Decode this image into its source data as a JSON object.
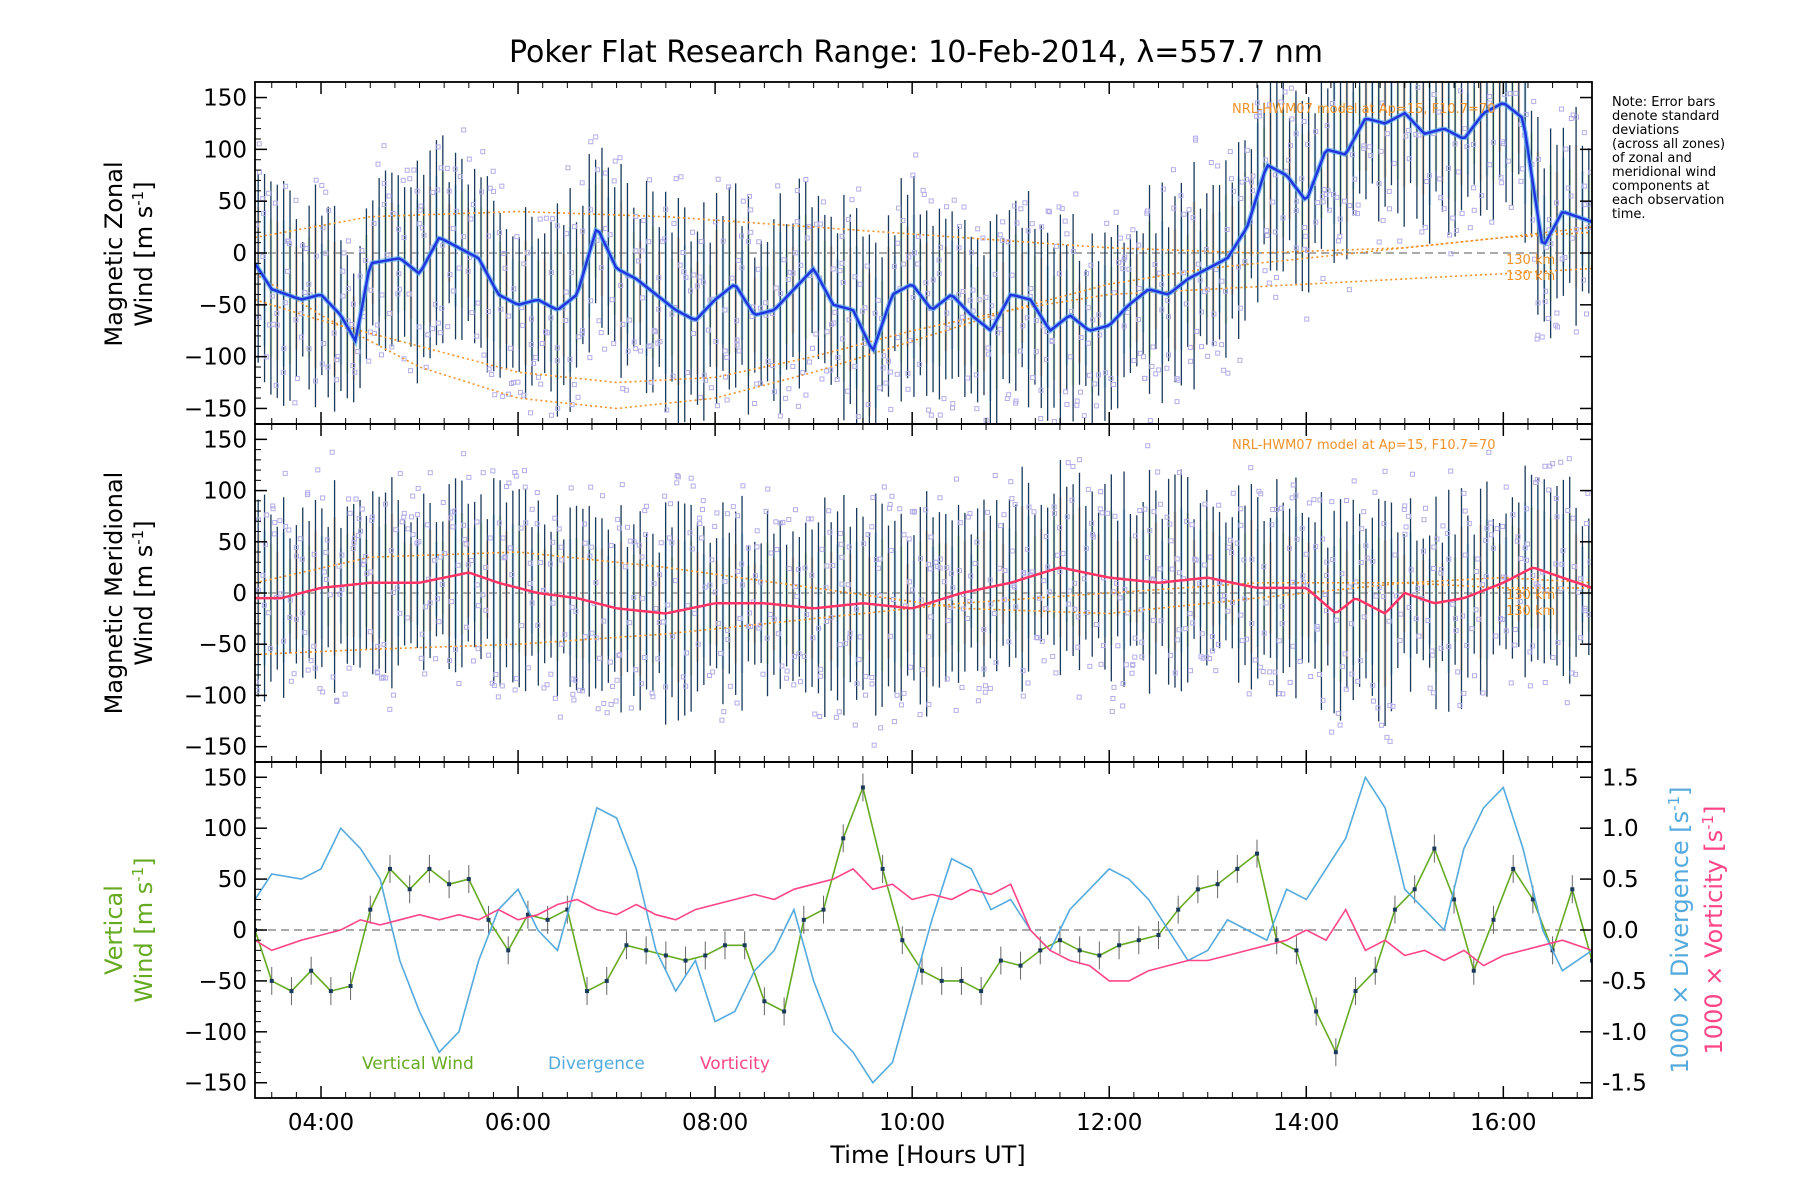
{
  "figure": {
    "title": "Poker Flat Research Range: 10-Feb-2014, λ=557.7 nm",
    "note": [
      "Note: Error bars",
      "denote standard",
      "deviations",
      "(across all zones)",
      "of zonal and",
      "meridional wind",
      "components at",
      "each observation",
      "time."
    ],
    "model_label_zonal": "NRL-HWM07 model at Ap=15, F10.7=70",
    "model_label_meridional": "NRL-HWM07 model at Ap=15, F10.7=70",
    "model_alt_zonal": [
      "130 km",
      "130 km"
    ],
    "model_alt_meridional": [
      "130 km",
      "130 km"
    ],
    "colors": {
      "zonal_mean": "#1f35e0",
      "zonal_light": "#5aa8e8",
      "meridional_mean": "#ff3366",
      "scatter": "#b3aee8",
      "error_bar": "#1a3a5c",
      "model": "#f0922a",
      "vertical": "#66aa22",
      "divergence": "#55aadd",
      "vorticity": "#ff4488"
    }
  },
  "chart_data": [
    {
      "type": "line",
      "id": "zonal",
      "ylabel_line1": "Magnetic Zonal",
      "ylabel_line2_prefix": "Wind [m s",
      "ylabel_sup": "-1",
      "ylabel_suffix": "]",
      "xlim": [
        3.33,
        16.9
      ],
      "ylim": [
        -165,
        165
      ],
      "yticks": [
        -150,
        -100,
        -50,
        0,
        50,
        100,
        150
      ],
      "series": [
        {
          "role": "mean",
          "x": [
            3.33,
            3.5,
            3.8,
            4.0,
            4.2,
            4.35,
            4.5,
            4.8,
            5.0,
            5.2,
            5.4,
            5.6,
            5.8,
            6.0,
            6.2,
            6.4,
            6.6,
            6.8,
            7.0,
            7.2,
            7.4,
            7.6,
            7.8,
            8.0,
            8.2,
            8.4,
            8.6,
            8.8,
            9.0,
            9.2,
            9.4,
            9.6,
            9.8,
            10.0,
            10.2,
            10.4,
            10.6,
            10.8,
            11.0,
            11.2,
            11.4,
            11.6,
            11.8,
            12.0,
            12.2,
            12.4,
            12.6,
            12.8,
            13.0,
            13.2,
            13.4,
            13.6,
            13.8,
            14.0,
            14.2,
            14.4,
            14.6,
            14.8,
            15.0,
            15.2,
            15.4,
            15.6,
            15.8,
            16.0,
            16.2,
            16.4,
            16.6,
            16.9
          ],
          "y": [
            -10,
            -35,
            -45,
            -40,
            -60,
            -85,
            -10,
            -5,
            -20,
            15,
            5,
            -5,
            -40,
            -50,
            -45,
            -55,
            -40,
            25,
            -15,
            -25,
            -40,
            -55,
            -65,
            -45,
            -30,
            -60,
            -55,
            -35,
            -15,
            -50,
            -55,
            -95,
            -40,
            -30,
            -55,
            -40,
            -60,
            -75,
            -40,
            -45,
            -75,
            -60,
            -75,
            -70,
            -50,
            -35,
            -40,
            -25,
            -15,
            -5,
            25,
            85,
            75,
            50,
            100,
            95,
            130,
            125,
            135,
            115,
            120,
            110,
            135,
            145,
            130,
            5,
            40,
            30
          ]
        },
        {
          "role": "model_a",
          "x": [
            3.33,
            4.0,
            5.0,
            6.0,
            7.0,
            8.0,
            9.0,
            10.0,
            11.0,
            12.0,
            13.0,
            14.0,
            15.0,
            16.0,
            16.9
          ],
          "y": [
            -45,
            -65,
            -90,
            -115,
            -125,
            -120,
            -100,
            -75,
            -55,
            -40,
            -35,
            -30,
            -25,
            -20,
            -15
          ]
        },
        {
          "role": "model_b",
          "x": [
            3.33,
            4.0,
            5.0,
            6.0,
            7.0,
            8.0,
            9.0,
            10.0,
            11.0,
            12.0,
            13.0,
            14.0,
            15.0,
            16.0,
            16.9
          ],
          "y": [
            -20,
            -60,
            -110,
            -140,
            -150,
            -140,
            -115,
            -85,
            -55,
            -30,
            -15,
            -5,
            5,
            15,
            25
          ]
        },
        {
          "role": "model_c",
          "x": [
            3.33,
            4.5,
            6.0,
            7.5,
            9.0,
            10.5,
            12.0,
            13.5,
            15.0,
            16.0,
            16.9
          ],
          "y": [
            15,
            35,
            40,
            35,
            25,
            15,
            5,
            0,
            5,
            15,
            20
          ]
        }
      ]
    },
    {
      "type": "line",
      "id": "meridional",
      "ylabel_line1": "Magnetic Meridional",
      "ylabel_line2_prefix": "Wind [m s",
      "ylabel_sup": "-1",
      "ylabel_suffix": "]",
      "xlim": [
        3.33,
        16.9
      ],
      "ylim": [
        -165,
        165
      ],
      "yticks": [
        -150,
        -100,
        -50,
        0,
        50,
        100,
        150
      ],
      "series": [
        {
          "role": "mean",
          "x": [
            3.33,
            3.6,
            4.0,
            4.5,
            5.0,
            5.5,
            5.8,
            6.2,
            6.6,
            7.0,
            7.5,
            8.0,
            8.5,
            9.0,
            9.5,
            10.0,
            10.5,
            11.0,
            11.5,
            12.0,
            12.5,
            13.0,
            13.5,
            14.0,
            14.3,
            14.5,
            14.8,
            15.0,
            15.3,
            15.6,
            16.0,
            16.3,
            16.6,
            16.9
          ],
          "y": [
            -5,
            -5,
            5,
            10,
            10,
            20,
            10,
            0,
            -5,
            -15,
            -20,
            -10,
            -10,
            -15,
            -10,
            -15,
            0,
            10,
            25,
            15,
            10,
            15,
            5,
            5,
            -20,
            -5,
            -20,
            0,
            -10,
            -5,
            10,
            25,
            15,
            5
          ]
        },
        {
          "role": "model_a",
          "x": [
            3.33,
            4.5,
            6.0,
            7.5,
            9.0,
            10.5,
            12.0,
            13.5,
            15.0,
            16.0,
            16.9
          ],
          "y": [
            -60,
            -55,
            -50,
            -40,
            -25,
            -10,
            0,
            10,
            10,
            5,
            5
          ]
        },
        {
          "role": "model_b",
          "x": [
            3.33,
            4.5,
            6.0,
            7.5,
            9.0,
            10.5,
            12.0,
            13.5,
            15.0,
            16.0,
            16.9
          ],
          "y": [
            10,
            35,
            40,
            25,
            5,
            -15,
            -20,
            -5,
            10,
            15,
            10
          ]
        }
      ]
    },
    {
      "type": "line",
      "id": "vertical",
      "ylabel_line1": "Vertical",
      "ylabel_line2_prefix": "Wind [m s",
      "ylabel_sup": "-1",
      "ylabel_suffix": "]",
      "ylabel_right_div_prefix": "1000 × Divergence [s",
      "ylabel_right_vor_prefix": "1000 × Vorticity [s",
      "ylabel_right_sup": "-1",
      "ylabel_right_suffix": "]",
      "xlabel": "Time [Hours UT]",
      "xlim": [
        3.33,
        16.9
      ],
      "xticks": [
        4,
        6,
        8,
        10,
        12,
        14,
        16
      ],
      "xtick_labels": [
        "04:00",
        "06:00",
        "08:00",
        "10:00",
        "12:00",
        "14:00",
        "16:00"
      ],
      "ylim": [
        -165,
        165
      ],
      "yticks": [
        -150,
        -100,
        -50,
        0,
        50,
        100,
        150
      ],
      "ylim_right": [
        -1.65,
        1.65
      ],
      "yticks_right": [
        -1.5,
        -1.0,
        -0.5,
        0.0,
        0.5,
        1.0,
        1.5
      ],
      "ytick_labels_right": [
        "-1.5",
        "-1.0",
        "-0.5",
        "0.0",
        "0.5",
        "1.0",
        "1.5"
      ],
      "legend": [
        "Vertical Wind",
        "Divergence",
        "Vorticity"
      ],
      "series": [
        {
          "name": "Vertical Wind",
          "axis": "left",
          "x": [
            3.33,
            3.5,
            3.7,
            3.9,
            4.1,
            4.3,
            4.5,
            4.7,
            4.9,
            5.1,
            5.3,
            5.5,
            5.7,
            5.9,
            6.1,
            6.3,
            6.5,
            6.7,
            6.9,
            7.1,
            7.3,
            7.5,
            7.7,
            7.9,
            8.1,
            8.3,
            8.5,
            8.7,
            8.9,
            9.1,
            9.3,
            9.5,
            9.7,
            9.9,
            10.1,
            10.3,
            10.5,
            10.7,
            10.9,
            11.1,
            11.3,
            11.5,
            11.7,
            11.9,
            12.1,
            12.3,
            12.5,
            12.7,
            12.9,
            13.1,
            13.3,
            13.5,
            13.7,
            13.9,
            14.1,
            14.3,
            14.5,
            14.7,
            14.9,
            15.1,
            15.3,
            15.5,
            15.7,
            15.9,
            16.1,
            16.3,
            16.5,
            16.7,
            16.9
          ],
          "y": [
            0,
            -50,
            -60,
            -40,
            -60,
            -55,
            20,
            60,
            40,
            60,
            45,
            50,
            10,
            -20,
            15,
            10,
            20,
            -60,
            -50,
            -15,
            -20,
            -25,
            -30,
            -25,
            -15,
            -15,
            -70,
            -80,
            10,
            20,
            90,
            140,
            60,
            -10,
            -40,
            -50,
            -50,
            -60,
            -30,
            -35,
            -20,
            -10,
            -20,
            -25,
            -15,
            -10,
            -5,
            20,
            40,
            45,
            60,
            75,
            -10,
            -20,
            -80,
            -120,
            -60,
            -40,
            20,
            40,
            80,
            30,
            -40,
            10,
            60,
            30,
            -20,
            40,
            -30
          ]
        },
        {
          "name": "Divergence",
          "axis": "right",
          "x": [
            3.33,
            3.5,
            3.8,
            4.0,
            4.2,
            4.4,
            4.6,
            4.8,
            5.0,
            5.2,
            5.4,
            5.6,
            5.8,
            6.0,
            6.2,
            6.4,
            6.6,
            6.8,
            7.0,
            7.2,
            7.4,
            7.6,
            7.8,
            8.0,
            8.2,
            8.4,
            8.6,
            8.8,
            9.0,
            9.2,
            9.4,
            9.6,
            9.8,
            10.0,
            10.2,
            10.4,
            10.6,
            10.8,
            11.0,
            11.2,
            11.4,
            11.6,
            11.8,
            12.0,
            12.2,
            12.4,
            12.6,
            12.8,
            13.0,
            13.2,
            13.4,
            13.6,
            13.8,
            14.0,
            14.2,
            14.4,
            14.6,
            14.8,
            15.0,
            15.2,
            15.4,
            15.6,
            15.8,
            16.0,
            16.2,
            16.4,
            16.6,
            16.9
          ],
          "y": [
            0.3,
            0.55,
            0.5,
            0.6,
            1.0,
            0.8,
            0.5,
            -0.3,
            -0.8,
            -1.2,
            -1.0,
            -0.3,
            0.2,
            0.4,
            0.0,
            -0.2,
            0.5,
            1.2,
            1.1,
            0.6,
            -0.2,
            -0.6,
            -0.3,
            -0.9,
            -0.8,
            -0.4,
            -0.2,
            0.2,
            -0.5,
            -1.0,
            -1.2,
            -1.5,
            -1.3,
            -0.6,
            0.1,
            0.7,
            0.6,
            0.2,
            0.3,
            0.0,
            -0.2,
            0.2,
            0.4,
            0.6,
            0.5,
            0.3,
            0.0,
            -0.3,
            -0.2,
            0.1,
            0.0,
            -0.1,
            0.4,
            0.3,
            0.6,
            0.9,
            1.5,
            1.2,
            0.4,
            0.2,
            0.0,
            0.8,
            1.2,
            1.4,
            0.8,
            0.0,
            -0.4,
            -0.2
          ]
        },
        {
          "name": "Vorticity",
          "axis": "right",
          "x": [
            3.33,
            3.5,
            3.8,
            4.0,
            4.2,
            4.4,
            4.6,
            4.8,
            5.0,
            5.2,
            5.4,
            5.6,
            5.8,
            6.0,
            6.2,
            6.4,
            6.6,
            6.8,
            7.0,
            7.2,
            7.4,
            7.6,
            7.8,
            8.0,
            8.2,
            8.4,
            8.6,
            8.8,
            9.0,
            9.2,
            9.4,
            9.6,
            9.8,
            10.0,
            10.2,
            10.4,
            10.6,
            10.8,
            11.0,
            11.2,
            11.4,
            11.6,
            11.8,
            12.0,
            12.2,
            12.4,
            12.6,
            12.8,
            13.0,
            13.2,
            13.4,
            13.6,
            13.8,
            14.0,
            14.2,
            14.4,
            14.6,
            14.8,
            15.0,
            15.2,
            15.4,
            15.6,
            15.8,
            16.0,
            16.2,
            16.4,
            16.6,
            16.9
          ],
          "y": [
            -0.1,
            -0.2,
            -0.1,
            -0.05,
            0.0,
            0.1,
            0.05,
            0.1,
            0.15,
            0.1,
            0.15,
            0.1,
            0.2,
            0.1,
            0.15,
            0.25,
            0.3,
            0.2,
            0.15,
            0.25,
            0.15,
            0.1,
            0.2,
            0.25,
            0.3,
            0.35,
            0.3,
            0.4,
            0.45,
            0.5,
            0.6,
            0.4,
            0.45,
            0.3,
            0.35,
            0.3,
            0.4,
            0.35,
            0.45,
            0.0,
            -0.2,
            -0.3,
            -0.35,
            -0.5,
            -0.5,
            -0.4,
            -0.35,
            -0.3,
            -0.3,
            -0.25,
            -0.2,
            -0.15,
            -0.1,
            0.0,
            -0.1,
            0.2,
            -0.2,
            -0.1,
            -0.25,
            -0.2,
            -0.3,
            -0.2,
            -0.35,
            -0.25,
            -0.2,
            -0.15,
            -0.1,
            -0.2
          ]
        }
      ]
    }
  ]
}
